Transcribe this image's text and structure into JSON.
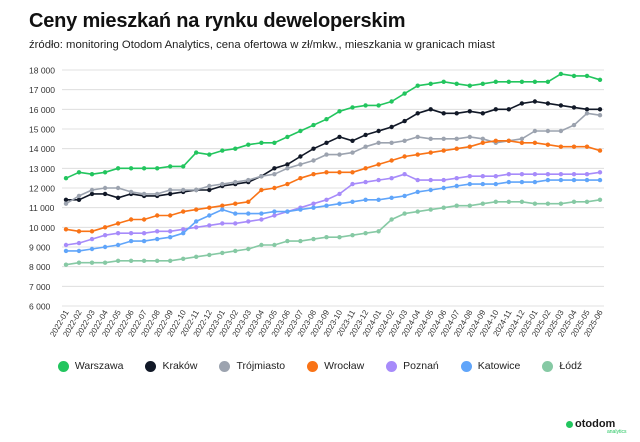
{
  "title": "Ceny mieszkań na rynku deweloperskim",
  "subtitle": "źródło: monitoring Otodom Analytics, cena ofertowa w zł/mkw., mieszkania w granicach miast",
  "logo": {
    "text": "otodom",
    "sub": "analytics"
  },
  "chart_data": {
    "type": "line",
    "title": "Ceny mieszkań na rynku deweloperskim",
    "subtitle": "źródło: monitoring Otodom Analytics, cena ofertowa w zł/mkw., mieszkania w granicach miast",
    "xlabel": "",
    "ylabel": "",
    "ylim": [
      6000,
      18000
    ],
    "yticks": [
      6000,
      7000,
      8000,
      9000,
      10000,
      11000,
      12000,
      13000,
      14000,
      15000,
      16000,
      17000,
      18000
    ],
    "ytick_labels": [
      "6 000",
      "7 000",
      "8 000",
      "9 000",
      "10 000",
      "11 000",
      "12 000",
      "13 000",
      "14 000",
      "15 000",
      "16 000",
      "17 000",
      "18 000"
    ],
    "grid": true,
    "legend_position": "bottom",
    "categories": [
      "2022-01",
      "2022-02",
      "2022-03",
      "2022-04",
      "2022-05",
      "2022-06",
      "2022-07",
      "2022-08",
      "2022-09",
      "2022-10",
      "2022-11",
      "2022-12",
      "2023-01",
      "2023-02",
      "2023-03",
      "2023-04",
      "2023-05",
      "2023-06",
      "2023-07",
      "2023-08",
      "2023-09",
      "2023-10",
      "2023-11",
      "2023-12",
      "2024-01",
      "2024-02",
      "2024-03",
      "2024-04",
      "2024-05",
      "2024-06",
      "2024-07",
      "2024-08",
      "2024-09",
      "2024-10",
      "2024-11",
      "2024-12",
      "2025-01",
      "2025-02",
      "2025-03",
      "2025-04",
      "2025-05",
      "2025-06"
    ],
    "series": [
      {
        "name": "Warszawa",
        "color": "#22c55e",
        "values": [
          12500,
          12800,
          12700,
          12800,
          13000,
          13000,
          13000,
          13000,
          13100,
          13100,
          13800,
          13700,
          13900,
          14000,
          14200,
          14300,
          14300,
          14600,
          14900,
          15200,
          15500,
          15900,
          16100,
          16200,
          16200,
          16400,
          16800,
          17200,
          17300,
          17400,
          17300,
          17200,
          17300,
          17400,
          17400,
          17400,
          17400,
          17400,
          17800,
          17700,
          17700,
          17500
        ]
      },
      {
        "name": "Kraków",
        "color": "#111827",
        "values": [
          11400,
          11400,
          11700,
          11700,
          11500,
          11700,
          11600,
          11600,
          11700,
          11800,
          11900,
          11900,
          12100,
          12200,
          12300,
          12600,
          13000,
          13200,
          13600,
          14000,
          14300,
          14600,
          14400,
          14700,
          14900,
          15100,
          15400,
          15800,
          16000,
          15800,
          15800,
          15900,
          15800,
          16000,
          16000,
          16300,
          16400,
          16300,
          16200,
          16100,
          16000,
          16000
        ]
      },
      {
        "name": "Trójmiasto",
        "color": "#9ca3af",
        "values": [
          11200,
          11600,
          11900,
          12000,
          12000,
          11800,
          11700,
          11700,
          11900,
          11900,
          11900,
          12100,
          12200,
          12300,
          12400,
          12600,
          12700,
          13000,
          13200,
          13400,
          13700,
          13700,
          13800,
          14100,
          14300,
          14300,
          14400,
          14600,
          14500,
          14500,
          14500,
          14600,
          14500,
          14300,
          14400,
          14500,
          14900,
          14900,
          14900,
          15200,
          15800,
          15700
        ]
      },
      {
        "name": "Wrocław",
        "color": "#f97316",
        "values": [
          9900,
          9800,
          9800,
          10000,
          10200,
          10400,
          10400,
          10600,
          10600,
          10800,
          10900,
          11000,
          11100,
          11200,
          11300,
          11900,
          12000,
          12200,
          12500,
          12700,
          12800,
          12800,
          12800,
          13000,
          13200,
          13400,
          13600,
          13700,
          13800,
          13900,
          14000,
          14100,
          14300,
          14400,
          14400,
          14300,
          14300,
          14200,
          14100,
          14100,
          14100,
          13900
        ]
      },
      {
        "name": "Poznań",
        "color": "#a78bfa",
        "values": [
          9100,
          9200,
          9400,
          9600,
          9700,
          9700,
          9700,
          9800,
          9800,
          9900,
          10000,
          10100,
          10200,
          10200,
          10300,
          10400,
          10600,
          10800,
          11000,
          11200,
          11400,
          11700,
          12200,
          12300,
          12400,
          12500,
          12700,
          12400,
          12400,
          12400,
          12500,
          12600,
          12600,
          12600,
          12700,
          12700,
          12700,
          12700,
          12700,
          12700,
          12700,
          12800
        ]
      },
      {
        "name": "Katowice",
        "color": "#60a5fa",
        "values": [
          8800,
          8800,
          8900,
          9000,
          9100,
          9300,
          9300,
          9400,
          9500,
          9700,
          10300,
          10600,
          10900,
          10700,
          10700,
          10700,
          10800,
          10800,
          10900,
          11000,
          11100,
          11200,
          11300,
          11400,
          11400,
          11500,
          11600,
          11800,
          11900,
          12000,
          12100,
          12200,
          12200,
          12200,
          12300,
          12300,
          12300,
          12400,
          12400,
          12400,
          12400,
          12400
        ]
      },
      {
        "name": "Łódź",
        "color": "#86c9a4",
        "values": [
          8100,
          8200,
          8200,
          8200,
          8300,
          8300,
          8300,
          8300,
          8300,
          8400,
          8500,
          8600,
          8700,
          8800,
          8900,
          9100,
          9100,
          9300,
          9300,
          9400,
          9500,
          9500,
          9600,
          9700,
          9800,
          10400,
          10700,
          10800,
          10900,
          11000,
          11100,
          11100,
          11200,
          11300,
          11300,
          11300,
          11200,
          11200,
          11200,
          11300,
          11300,
          11400
        ]
      }
    ]
  }
}
